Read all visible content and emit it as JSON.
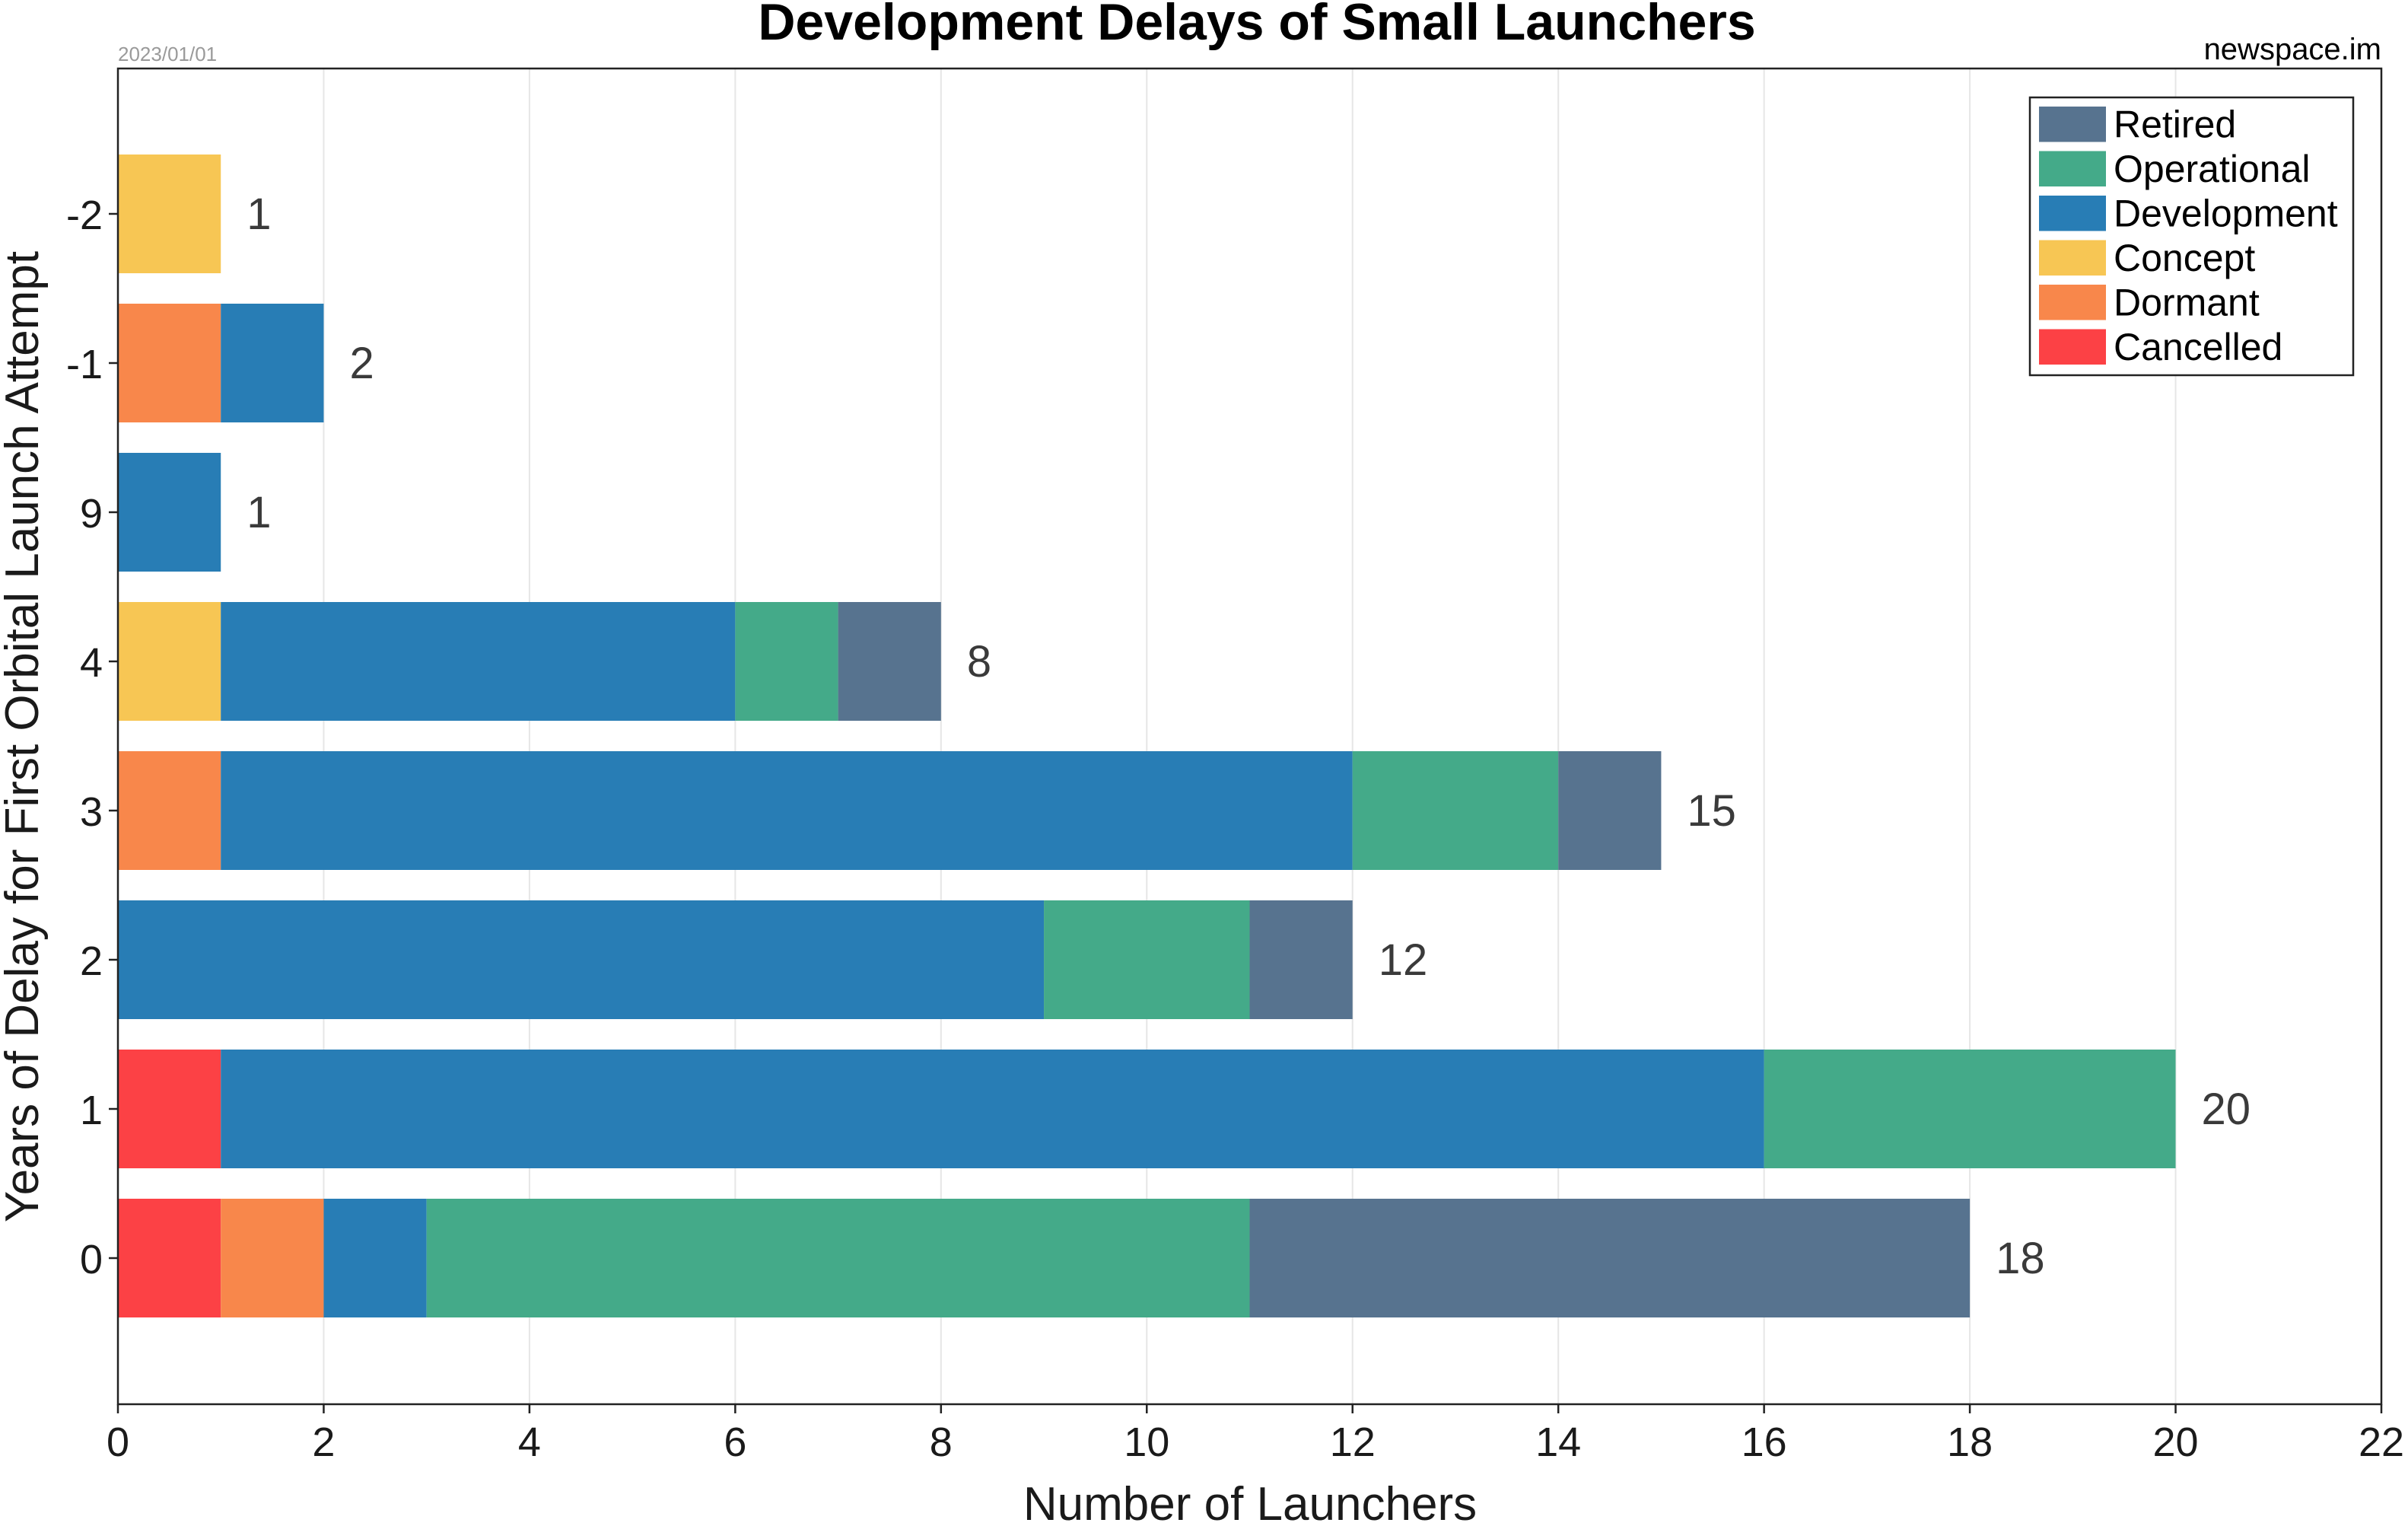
{
  "chart_data": {
    "type": "bar",
    "orientation": "horizontal",
    "stacked": true,
    "title": "Development Delays of Small Launchers",
    "date": "2023/01/01",
    "source": "newspace.im",
    "xlabel": "Number of Launchers",
    "ylabel": "Years of Delay for First Orbital Launch Attempt",
    "xlim": [
      0,
      22
    ],
    "xticks": [
      0,
      2,
      4,
      6,
      8,
      10,
      12,
      14,
      16,
      18,
      20,
      22
    ],
    "grid": true,
    "legend_position": "top-right",
    "categories": [
      "0",
      "1",
      "2",
      "3",
      "4",
      "9",
      "-1",
      "-2"
    ],
    "series": [
      {
        "name": "Cancelled",
        "color": "#fc4145",
        "values": [
          1,
          1,
          0,
          0,
          0,
          0,
          0,
          0
        ]
      },
      {
        "name": "Dormant",
        "color": "#f8874b",
        "values": [
          1,
          0,
          0,
          1,
          0,
          0,
          1,
          0
        ]
      },
      {
        "name": "Concept",
        "color": "#f7c654",
        "values": [
          0,
          0,
          0,
          0,
          1,
          0,
          0,
          1
        ]
      },
      {
        "name": "Development",
        "color": "#287db5",
        "values": [
          1,
          15,
          9,
          11,
          5,
          1,
          1,
          0
        ]
      },
      {
        "name": "Operational",
        "color": "#44aa89",
        "values": [
          8,
          4,
          2,
          2,
          1,
          0,
          0,
          0
        ]
      },
      {
        "name": "Retired",
        "color": "#57738f",
        "values": [
          7,
          0,
          1,
          1,
          1,
          0,
          0,
          0
        ]
      }
    ],
    "totals": [
      18,
      20,
      12,
      15,
      8,
      1,
      2,
      1
    ],
    "legend_order": [
      "Retired",
      "Operational",
      "Development",
      "Concept",
      "Dormant",
      "Cancelled"
    ]
  }
}
